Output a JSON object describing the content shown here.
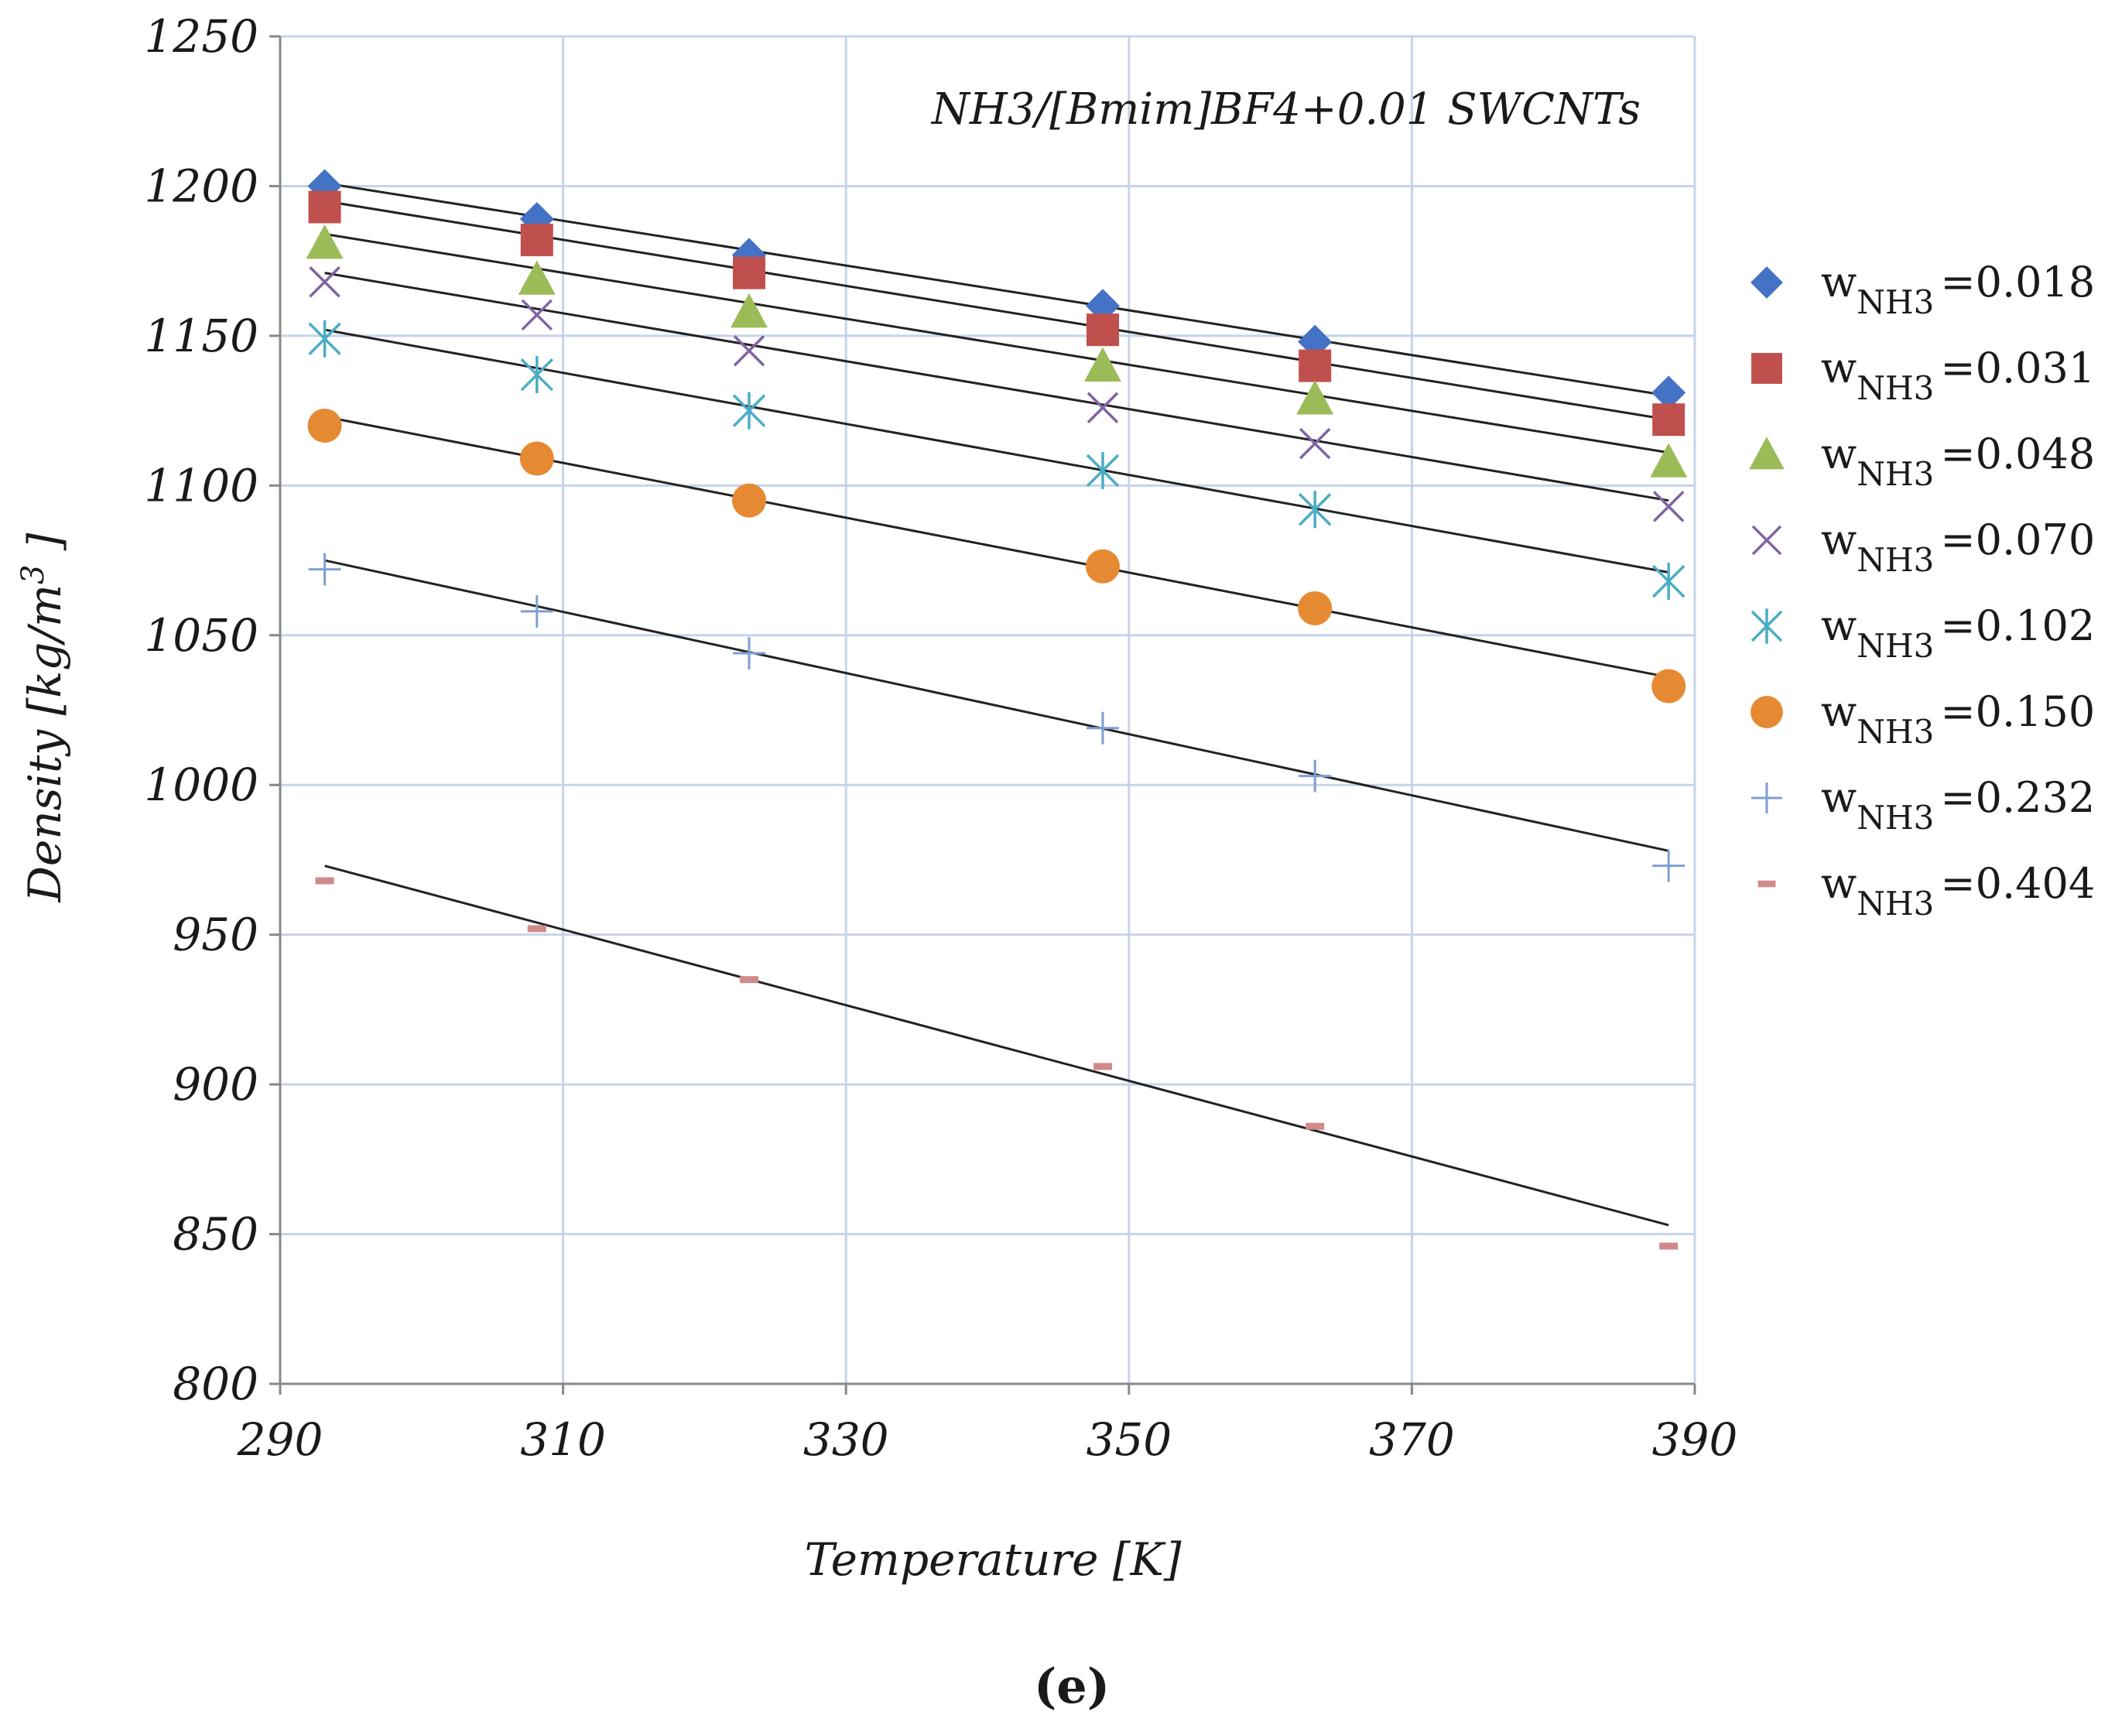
{
  "chart_data": {
    "type": "scatter",
    "annotation": "NH3/[Bmim]BF4+0.01 SWCNTs",
    "xlabel": "Temperature [K]",
    "ylabel": "Density [kg/m",
    "ylabel_sup": "3",
    "ylabel_end": " ]",
    "caption": "(e)",
    "xlim": [
      290,
      390
    ],
    "ylim": [
      800,
      1250
    ],
    "xticks": [
      "290",
      "310",
      "330",
      "350",
      "370",
      "390"
    ],
    "yticks": [
      "800",
      "850",
      "900",
      "950",
      "1000",
      "1050",
      "1100",
      "1150",
      "1200",
      "1250"
    ],
    "grid": true,
    "legend_position": "right",
    "x": [
      293.15,
      308.15,
      323.15,
      348.15,
      363.15,
      388.15
    ],
    "series": [
      {
        "name": "=0.018",
        "symbol": "w",
        "subscript": "NH3",
        "marker": "diamond",
        "color": "#4472c4",
        "values": [
          1200,
          1189,
          1177,
          1160,
          1148,
          1131
        ],
        "fit": [
          1201,
          1130
        ]
      },
      {
        "name": "=0.031",
        "symbol": "w",
        "subscript": "NH3",
        "marker": "square",
        "color": "#c0504d",
        "values": [
          1193,
          1182,
          1171,
          1152,
          1140,
          1122
        ],
        "fit": [
          1195,
          1122
        ]
      },
      {
        "name": "=0.048",
        "symbol": "w",
        "subscript": "NH3",
        "marker": "triangle",
        "color": "#9bbb59",
        "values": [
          1181,
          1169,
          1158,
          1140,
          1129,
          1108
        ],
        "fit": [
          1184,
          1111
        ]
      },
      {
        "name": "=0.070",
        "symbol": "w",
        "subscript": "NH3",
        "marker": "x",
        "color": "#8064a2",
        "values": [
          1168,
          1157,
          1145,
          1126,
          1114,
          1093
        ],
        "fit": [
          1171,
          1095
        ]
      },
      {
        "name": "=0.102",
        "symbol": "w",
        "subscript": "NH3",
        "marker": "star",
        "color": "#4bacc6",
        "values": [
          1149,
          1137,
          1125,
          1105,
          1092,
          1068
        ],
        "fit": [
          1152,
          1071
        ]
      },
      {
        "name": "=0.150",
        "symbol": "w",
        "subscript": "NH3",
        "marker": "circle",
        "color": "#e58a33",
        "values": [
          1120,
          1109,
          1095,
          1073,
          1059,
          1033
        ],
        "fit": [
          1123,
          1036
        ]
      },
      {
        "name": "=0.232",
        "symbol": "w",
        "subscript": "NH3",
        "marker": "plus",
        "color": "#7f9fd0",
        "values": [
          1072,
          1058,
          1044,
          1019,
          1003,
          973
        ],
        "fit": [
          1075,
          978
        ]
      },
      {
        "name": "=0.404",
        "symbol": "w",
        "subscript": "NH3",
        "marker": "dash",
        "color": "#d08a8a",
        "values": [
          968,
          952,
          935,
          906,
          886,
          846
        ],
        "fit": [
          973,
          853
        ]
      }
    ]
  }
}
